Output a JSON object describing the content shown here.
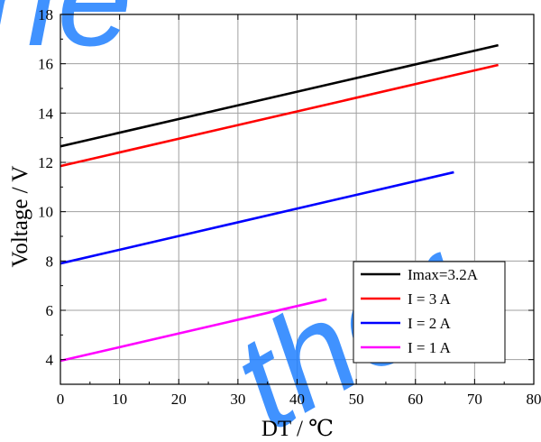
{
  "chart_data": {
    "type": "line",
    "xlabel": "DT / ℃",
    "ylabel": "Voltage / V",
    "xlim": [
      0,
      80
    ],
    "ylim": [
      3,
      18
    ],
    "x_ticks": [
      0,
      10,
      20,
      30,
      40,
      50,
      60,
      70,
      80
    ],
    "y_ticks": [
      4,
      6,
      8,
      10,
      12,
      14,
      16,
      18
    ],
    "grid": true,
    "legend_position": "bottom-right",
    "series": [
      {
        "name": "Imax=3.2A",
        "color": "#000000",
        "x": [
          0,
          74
        ],
        "y": [
          12.65,
          16.75
        ]
      },
      {
        "name": "I = 3 A",
        "color": "#ff0000",
        "x": [
          0,
          74
        ],
        "y": [
          11.85,
          15.95
        ]
      },
      {
        "name": "I = 2 A",
        "color": "#0000ff",
        "x": [
          0,
          66.5
        ],
        "y": [
          7.9,
          11.6
        ]
      },
      {
        "name": "I = 1 A",
        "color": "#ff00ff",
        "x": [
          0,
          45
        ],
        "y": [
          3.95,
          6.45
        ]
      }
    ]
  },
  "watermark": {
    "top_left": "ne",
    "right": "ther",
    "color": "#1e7fff"
  }
}
